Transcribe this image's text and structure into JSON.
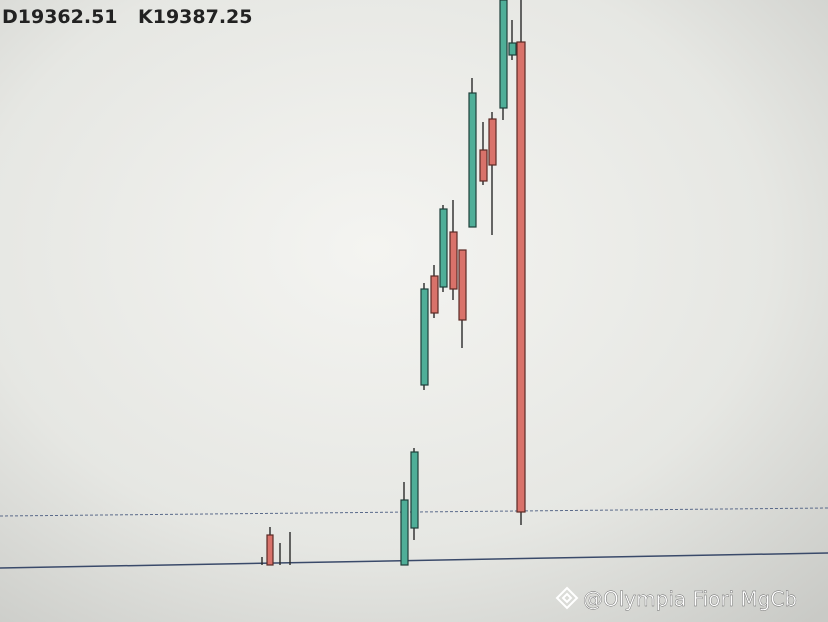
{
  "header": {
    "open_label": "D19362.51",
    "close_label": "K19387.25"
  },
  "watermark": "@Olympia Fiori MgCb"
}
